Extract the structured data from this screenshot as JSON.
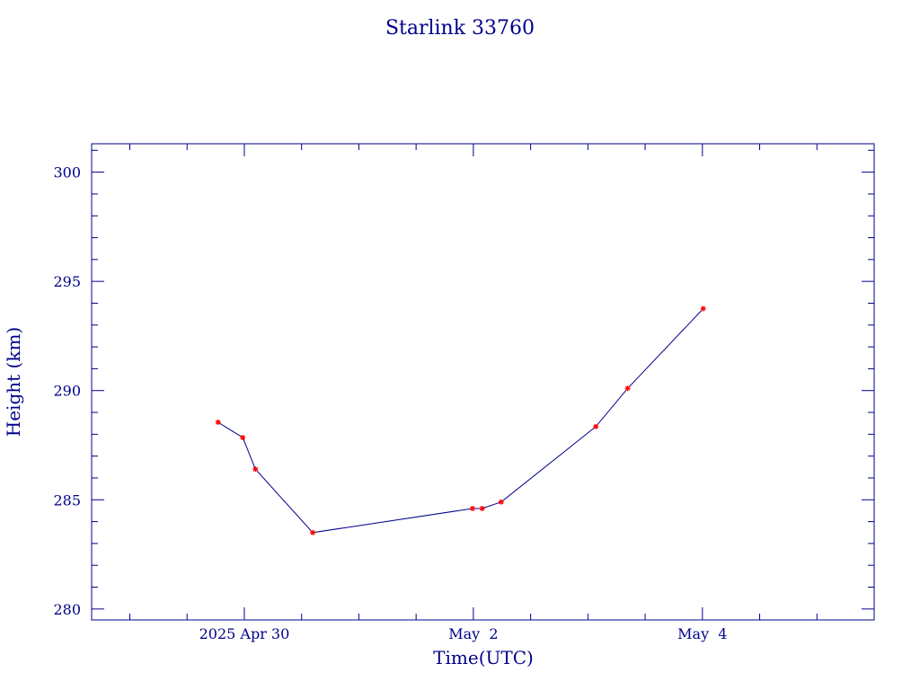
{
  "chart_data": {
    "type": "line",
    "title": "Starlink 33760",
    "xlabel": "Time(UTC)",
    "ylabel": "Height (km)",
    "x_tick_labels": [
      {
        "date": "2025-04-30",
        "label": "2025 Apr 30"
      },
      {
        "date": "2025-05-02",
        "label": "May  2"
      },
      {
        "date": "2025-05-04",
        "label": "May  4"
      }
    ],
    "xlim": [
      "2025-04-28T16:00",
      "2025-05-05T12:00"
    ],
    "ylim": [
      279.5,
      301.3
    ],
    "y_ticks": [
      280,
      285,
      290,
      295,
      300
    ],
    "grid": false,
    "colors": {
      "line": "#00008b",
      "marker": "#ff0000",
      "frame": "#00008b",
      "text": "#00008b"
    },
    "series": [
      {
        "points": [
          {
            "x": "2025-04-29T18:30",
            "y": 288.55
          },
          {
            "x": "2025-04-29T23:40",
            "y": 287.85
          },
          {
            "x": "2025-04-30T02:20",
            "y": 286.4
          },
          {
            "x": "2025-04-30T14:20",
            "y": 283.5
          },
          {
            "x": "2025-05-01T23:50",
            "y": 284.6
          },
          {
            "x": "2025-05-02T01:50",
            "y": 284.6
          },
          {
            "x": "2025-05-02T05:50",
            "y": 284.9
          },
          {
            "x": "2025-05-03T01:40",
            "y": 288.35
          },
          {
            "x": "2025-05-03T08:20",
            "y": 290.1
          },
          {
            "x": "2025-05-04T00:10",
            "y": 293.75
          }
        ]
      }
    ]
  }
}
